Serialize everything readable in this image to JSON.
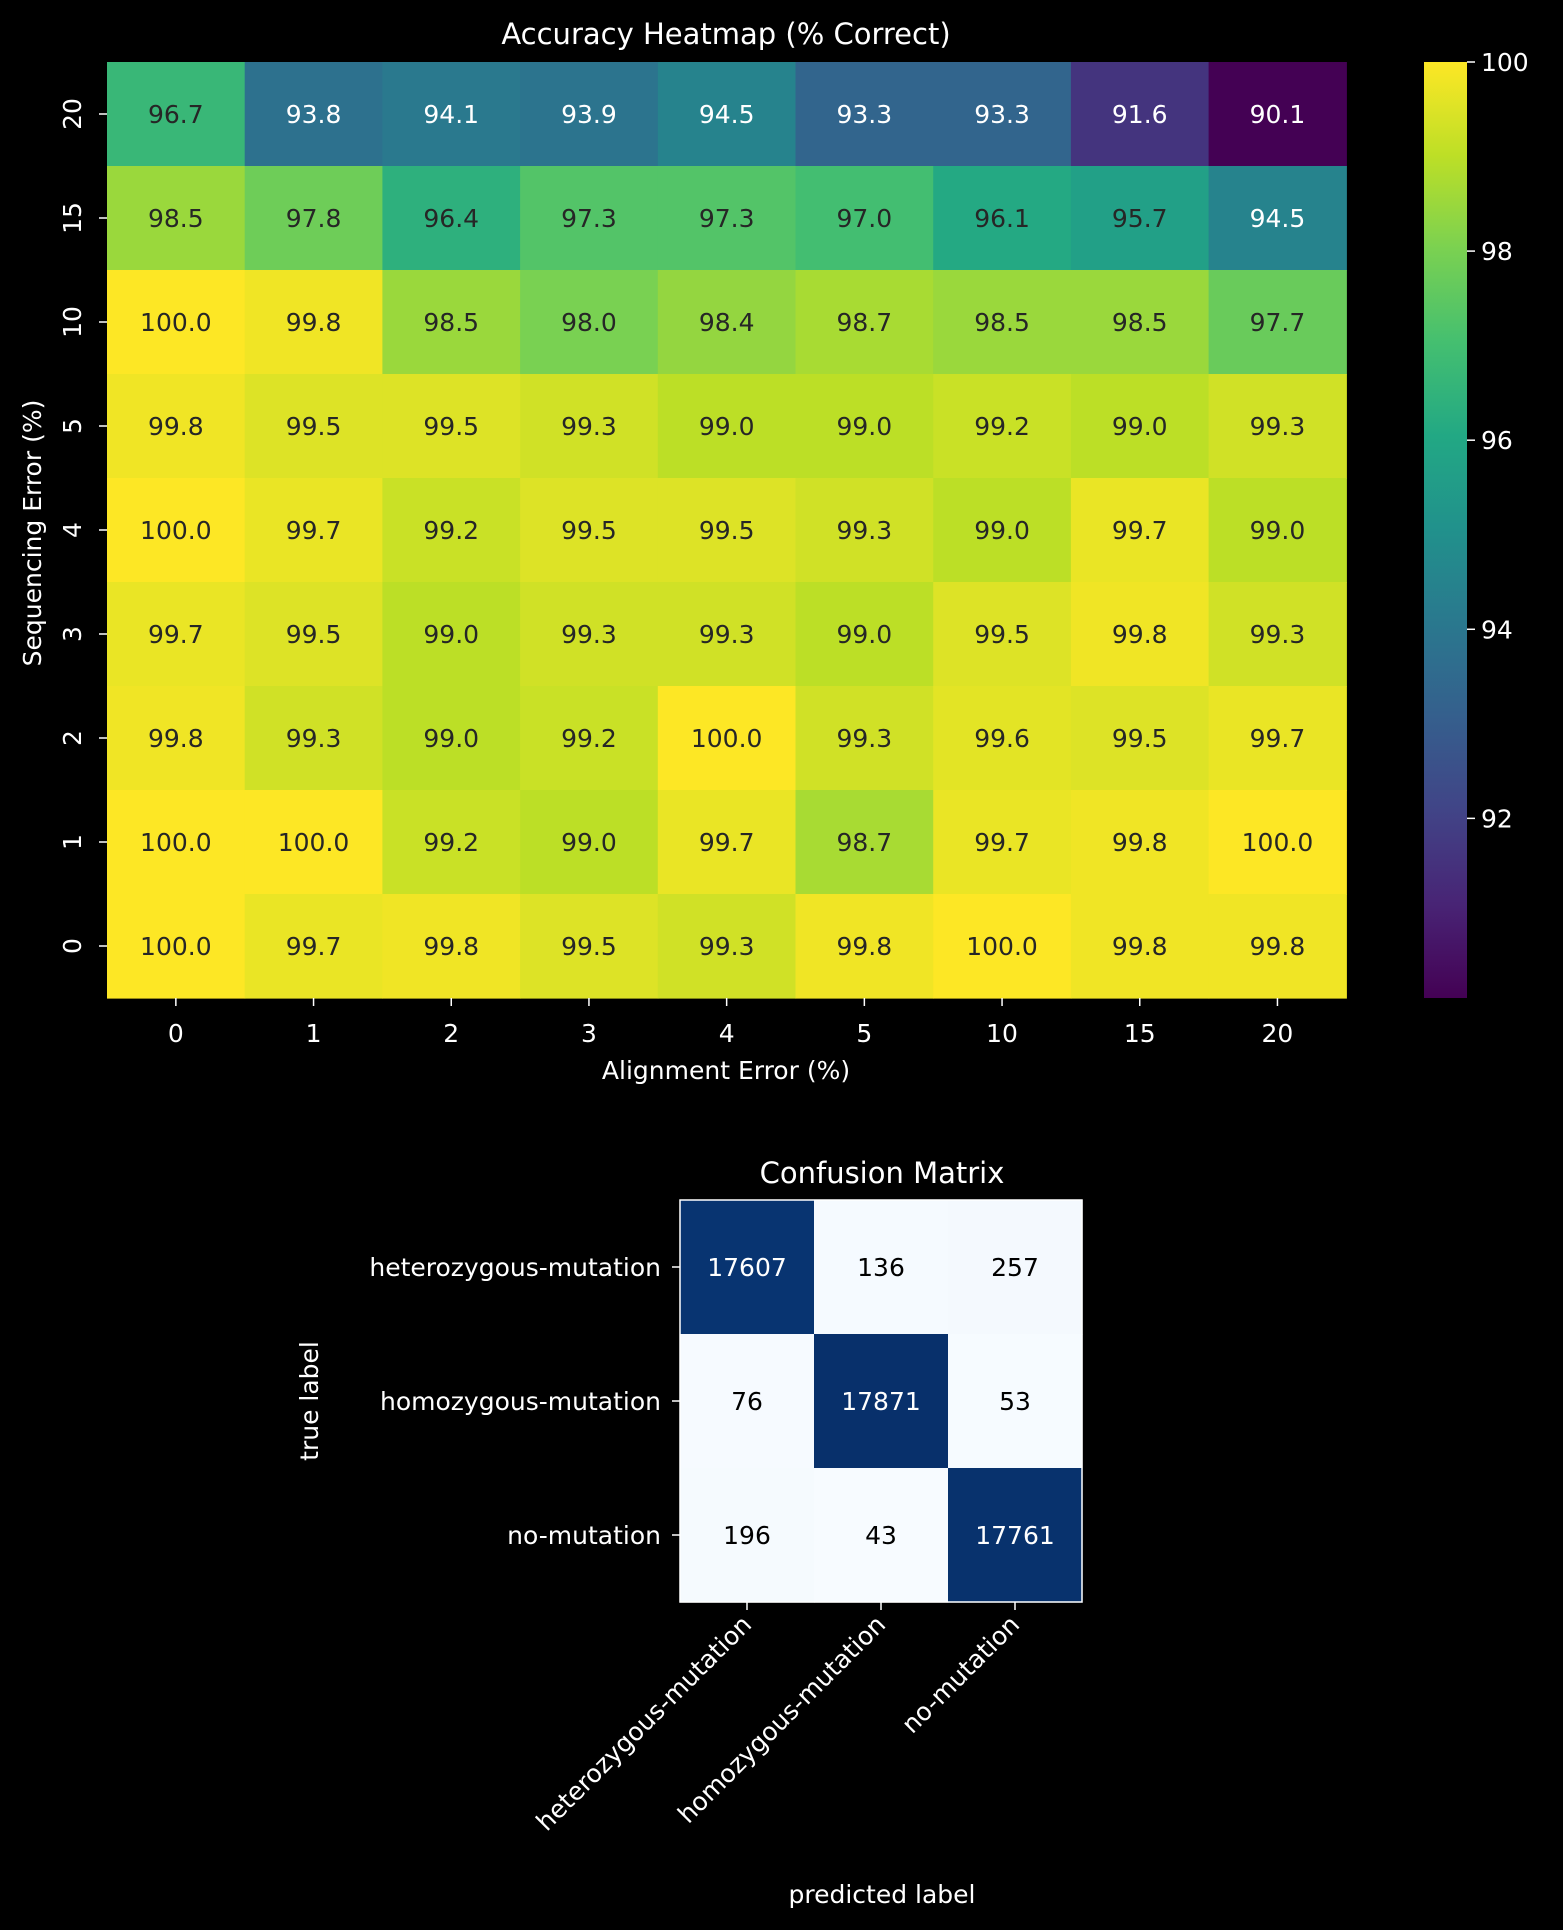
{
  "colors": {
    "background": "#000000",
    "text": "#ffffff",
    "cell_text_dark": "#262626",
    "cell_text_light": "#ffffff",
    "cm_frame": "#ffffff"
  },
  "chart_data": [
    {
      "type": "heatmap",
      "title": "Accuracy Heatmap (% Correct)",
      "xlabel": "Alignment Error (%)",
      "ylabel": "Sequencing Error (%)",
      "x_categories": [
        "0",
        "1",
        "2",
        "3",
        "4",
        "5",
        "10",
        "15",
        "20"
      ],
      "y_categories": [
        "20",
        "15",
        "10",
        "5",
        "4",
        "3",
        "2",
        "1",
        "0"
      ],
      "values": [
        [
          96.7,
          93.8,
          94.1,
          93.9,
          94.5,
          93.3,
          93.3,
          91.6,
          90.1
        ],
        [
          98.5,
          97.8,
          96.4,
          97.3,
          97.3,
          97.0,
          96.1,
          95.7,
          94.5
        ],
        [
          100.0,
          99.8,
          98.5,
          98.0,
          98.4,
          98.7,
          98.5,
          98.5,
          97.7
        ],
        [
          99.8,
          99.5,
          99.5,
          99.3,
          99.0,
          99.0,
          99.2,
          99.0,
          99.3
        ],
        [
          100.0,
          99.7,
          99.2,
          99.5,
          99.5,
          99.3,
          99.0,
          99.7,
          99.0
        ],
        [
          99.7,
          99.5,
          99.0,
          99.3,
          99.3,
          99.0,
          99.5,
          99.8,
          99.3
        ],
        [
          99.8,
          99.3,
          99.0,
          99.2,
          100.0,
          99.3,
          99.6,
          99.5,
          99.7
        ],
        [
          100.0,
          100.0,
          99.2,
          99.0,
          99.7,
          98.7,
          99.7,
          99.8,
          100.0
        ],
        [
          100.0,
          99.7,
          99.8,
          99.5,
          99.3,
          99.8,
          100.0,
          99.8,
          99.8
        ]
      ],
      "colormap": "viridis",
      "color_range": [
        90.1,
        100.0
      ],
      "colorbar_ticks": [
        92,
        94,
        96,
        98,
        100
      ]
    },
    {
      "type": "heatmap",
      "title": "Confusion Matrix",
      "xlabel": "predicted label",
      "ylabel": "true label",
      "categories": [
        "heterozygous-mutation",
        "homozygous-mutation",
        "no-mutation"
      ],
      "values": [
        [
          17607,
          136,
          257
        ],
        [
          76,
          17871,
          53
        ],
        [
          196,
          43,
          17761
        ]
      ],
      "colormap": "Blues"
    }
  ]
}
